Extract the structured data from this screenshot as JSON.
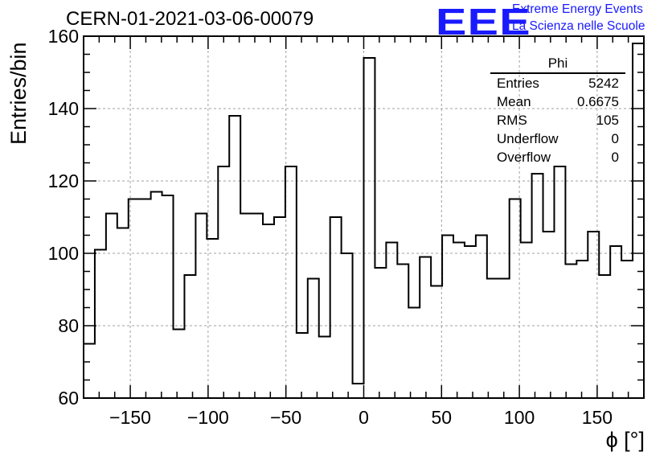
{
  "header": {
    "title": "CERN-01-2021-03-06-00079",
    "logo": "EEE",
    "logo_line1": "Extreme Energy Events",
    "logo_line2": "La Scienza nelle Scuole"
  },
  "stats": {
    "title": "Phi",
    "rows": [
      {
        "label": "Entries",
        "value": "5242"
      },
      {
        "label": "Mean",
        "value": "0.6675"
      },
      {
        "label": "RMS",
        "value": "105"
      },
      {
        "label": "Underflow",
        "value": "0"
      },
      {
        "label": "Overflow",
        "value": "0"
      }
    ]
  },
  "colors": {
    "line": "#000000",
    "grid": "#a0a0a0",
    "logo": "#1a1aff"
  },
  "chart_data": {
    "type": "bar",
    "style": "step histogram",
    "xlabel": "ϕ [°]",
    "ylabel": "Entries/bin",
    "xlim": [
      -180,
      180
    ],
    "ylim": [
      60,
      160
    ],
    "grid": true,
    "legend": "top-right statistics box",
    "xticks": [
      -150,
      -100,
      -50,
      0,
      50,
      100,
      150
    ],
    "yticks": [
      60,
      80,
      100,
      120,
      140,
      160
    ],
    "bin_width": 7.2,
    "values": [
      75,
      101,
      111,
      107,
      115,
      115,
      117,
      116,
      79,
      94,
      111,
      104,
      124,
      138,
      111,
      111,
      108,
      110,
      124,
      78,
      93,
      77,
      110,
      100,
      64,
      154,
      96,
      103,
      97,
      85,
      99,
      91,
      105,
      103,
      102,
      105,
      93,
      93,
      115,
      103,
      122,
      106,
      124,
      97,
      98,
      106,
      94,
      102,
      98,
      158
    ]
  }
}
